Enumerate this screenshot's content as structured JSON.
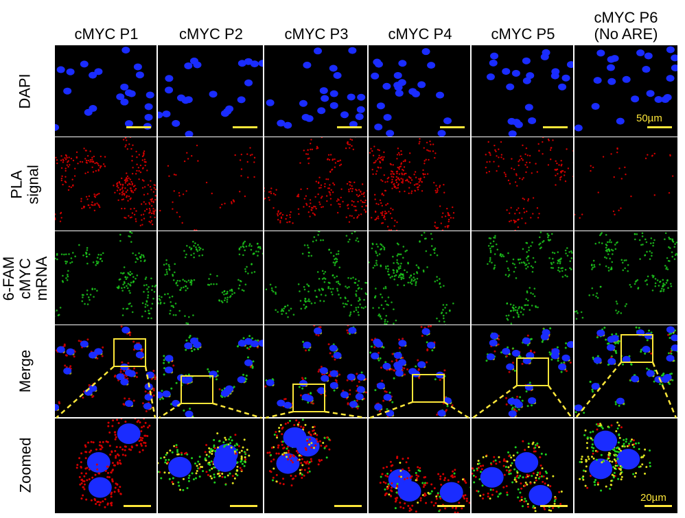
{
  "columns": [
    "cMYC P1",
    "cMYC P2",
    "cMYC P3",
    "cMYC P4",
    "cMYC P5",
    "cMYC P6\n(No ARE)"
  ],
  "rows": [
    {
      "label": "DAPI"
    },
    {
      "label": "PLA\nsignal"
    },
    {
      "label": "6-FAM\ncMYC mRNA"
    },
    {
      "label": "Merge"
    },
    {
      "label": "Zoomed"
    }
  ],
  "scale_bars": {
    "top": "50µm",
    "bottom": "20µm"
  },
  "colors": {
    "dapi": "#1a2cff",
    "pla": "#d40000",
    "fam": "#1ed21e",
    "scale": "#ffe83a",
    "zoom_line": "#ffe83a"
  }
}
